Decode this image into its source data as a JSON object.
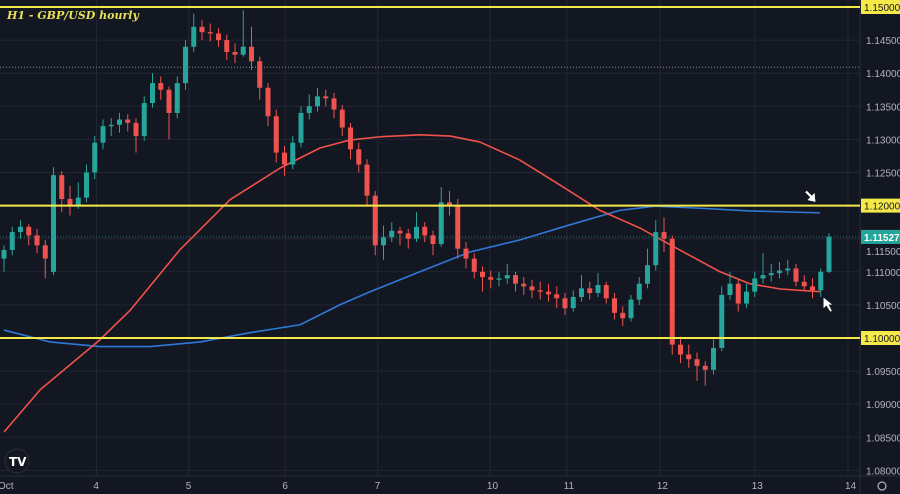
{
  "chart_data": {
    "type": "candlestick",
    "title": "H1 - GBP/USD hourly",
    "ylim": [
      1.0785,
      1.151
    ],
    "y_ticks": [
      "1.15000",
      "1.14500",
      "1.14000",
      "1.13500",
      "1.13000",
      "1.12500",
      "1.12000",
      "1.11500",
      "1.11000",
      "1.10500",
      "1.10000",
      "1.09500",
      "1.09000",
      "1.08500",
      "1.08000"
    ],
    "x_ticks": [
      {
        "label": "Oct",
        "bar": 0
      },
      {
        "label": "4",
        "bar": 11.2
      },
      {
        "label": "5",
        "bar": 22.4
      },
      {
        "label": "6",
        "bar": 34.1
      },
      {
        "label": "7",
        "bar": 45.3
      },
      {
        "label": "10",
        "bar": 58.9
      },
      {
        "label": "11",
        "bar": 68.2
      },
      {
        "label": "12",
        "bar": 79.5
      },
      {
        "label": "13",
        "bar": 91
      },
      {
        "label": "14",
        "bar": 102.3
      }
    ],
    "grid": true,
    "colors": {
      "up": "#26a69a",
      "down": "#ef5350",
      "background": "#131722",
      "grid": "#232734",
      "level": "#f5e94a",
      "ma_fast": "#f0524a",
      "ma_slow": "#2f78d8",
      "axis_text": "#b2b5be"
    },
    "candles": [
      [
        1.112,
        1.114,
        1.11,
        1.1133
      ],
      [
        1.1133,
        1.1168,
        1.1125,
        1.116
      ],
      [
        1.116,
        1.1178,
        1.115,
        1.1168
      ],
      [
        1.1168,
        1.1172,
        1.114,
        1.1155
      ],
      [
        1.1155,
        1.1165,
        1.1128,
        1.114
      ],
      [
        1.114,
        1.1148,
        1.109,
        1.112
      ],
      [
        1.11,
        1.1258,
        1.1095,
        1.1246
      ],
      [
        1.1246,
        1.1252,
        1.119,
        1.121
      ],
      [
        1.121,
        1.123,
        1.1185,
        1.12
      ],
      [
        1.12,
        1.1235,
        1.1195,
        1.1212
      ],
      [
        1.1212,
        1.1262,
        1.1205,
        1.125
      ],
      [
        1.125,
        1.1305,
        1.124,
        1.1295
      ],
      [
        1.1295,
        1.133,
        1.1285,
        1.132
      ],
      [
        1.132,
        1.1332,
        1.1305,
        1.1322
      ],
      [
        1.1322,
        1.134,
        1.131,
        1.133
      ],
      [
        1.133,
        1.1338,
        1.1312,
        1.1325
      ],
      [
        1.1325,
        1.1332,
        1.128,
        1.1305
      ],
      [
        1.1305,
        1.1365,
        1.1298,
        1.1355
      ],
      [
        1.1355,
        1.14,
        1.1348,
        1.1385
      ],
      [
        1.1385,
        1.1395,
        1.136,
        1.1375
      ],
      [
        1.1375,
        1.138,
        1.13,
        1.134
      ],
      [
        1.134,
        1.1395,
        1.1332,
        1.1385
      ],
      [
        1.1385,
        1.145,
        1.1375,
        1.144
      ],
      [
        1.144,
        1.149,
        1.1432,
        1.147
      ],
      [
        1.147,
        1.148,
        1.145,
        1.1462
      ],
      [
        1.1462,
        1.1475,
        1.1448,
        1.146
      ],
      [
        1.146,
        1.1468,
        1.144,
        1.145
      ],
      [
        1.145,
        1.1458,
        1.142,
        1.1432
      ],
      [
        1.1432,
        1.1445,
        1.1415,
        1.1428
      ],
      [
        1.1428,
        1.1495,
        1.1425,
        1.144
      ],
      [
        1.144,
        1.147,
        1.1405,
        1.1418
      ],
      [
        1.1418,
        1.1425,
        1.136,
        1.1378
      ],
      [
        1.1378,
        1.1385,
        1.132,
        1.1335
      ],
      [
        1.1335,
        1.1345,
        1.1265,
        1.128
      ],
      [
        1.128,
        1.129,
        1.1245,
        1.1262
      ],
      [
        1.1262,
        1.1305,
        1.1255,
        1.1295
      ],
      [
        1.1295,
        1.135,
        1.1288,
        1.134
      ],
      [
        1.134,
        1.1368,
        1.133,
        1.135
      ],
      [
        1.135,
        1.1378,
        1.1342,
        1.1365
      ],
      [
        1.1365,
        1.1375,
        1.135,
        1.1362
      ],
      [
        1.1362,
        1.137,
        1.1332,
        1.1345
      ],
      [
        1.1345,
        1.1352,
        1.1305,
        1.1318
      ],
      [
        1.1318,
        1.1325,
        1.127,
        1.1285
      ],
      [
        1.1285,
        1.1295,
        1.125,
        1.1262
      ],
      [
        1.1262,
        1.127,
        1.12,
        1.1215
      ],
      [
        1.1215,
        1.1222,
        1.1125,
        1.114
      ],
      [
        1.114,
        1.117,
        1.1118,
        1.1152
      ],
      [
        1.1152,
        1.1175,
        1.1145,
        1.1162
      ],
      [
        1.1162,
        1.1168,
        1.114,
        1.1158
      ],
      [
        1.1158,
        1.1165,
        1.1135,
        1.115
      ],
      [
        1.115,
        1.119,
        1.1145,
        1.1168
      ],
      [
        1.1168,
        1.1175,
        1.1145,
        1.1155
      ],
      [
        1.1155,
        1.1162,
        1.1125,
        1.1142
      ],
      [
        1.1142,
        1.1228,
        1.1138,
        1.1205
      ],
      [
        1.1205,
        1.1222,
        1.1185,
        1.12
      ],
      [
        1.12,
        1.121,
        1.112,
        1.1135
      ],
      [
        1.1135,
        1.1145,
        1.1105,
        1.112
      ],
      [
        1.112,
        1.1128,
        1.109,
        1.11
      ],
      [
        1.11,
        1.1108,
        1.107,
        1.1092
      ],
      [
        1.1092,
        1.1102,
        1.1075,
        1.1088
      ],
      [
        1.1088,
        1.11,
        1.1078,
        1.109
      ],
      [
        1.109,
        1.1112,
        1.1082,
        1.1095
      ],
      [
        1.1095,
        1.11,
        1.107,
        1.1082
      ],
      [
        1.1082,
        1.1092,
        1.1065,
        1.1078
      ],
      [
        1.1078,
        1.1088,
        1.106,
        1.1072
      ],
      [
        1.1072,
        1.1085,
        1.1058,
        1.107
      ],
      [
        1.107,
        1.1082,
        1.1055,
        1.1066
      ],
      [
        1.1066,
        1.1078,
        1.1045,
        1.106
      ],
      [
        1.106,
        1.1068,
        1.1035,
        1.1045
      ],
      [
        1.1045,
        1.1072,
        1.104,
        1.1062
      ],
      [
        1.1062,
        1.1095,
        1.1055,
        1.1075
      ],
      [
        1.1075,
        1.1085,
        1.1058,
        1.1068
      ],
      [
        1.1068,
        1.1098,
        1.1062,
        1.108
      ],
      [
        1.108,
        1.1085,
        1.1052,
        1.106
      ],
      [
        1.106,
        1.1068,
        1.1028,
        1.1038
      ],
      [
        1.1038,
        1.1048,
        1.1018,
        1.103
      ],
      [
        1.103,
        1.1065,
        1.1025,
        1.1058
      ],
      [
        1.1058,
        1.1092,
        1.105,
        1.1082
      ],
      [
        1.1082,
        1.1135,
        1.1075,
        1.111
      ],
      [
        1.111,
        1.1178,
        1.1102,
        1.116
      ],
      [
        1.116,
        1.1182,
        1.113,
        1.115
      ],
      [
        1.115,
        1.1155,
        1.0975,
        1.099
      ],
      [
        1.099,
        1.1002,
        1.0962,
        1.0975
      ],
      [
        1.0975,
        1.099,
        1.0955,
        1.0968
      ],
      [
        1.0968,
        1.0978,
        1.0935,
        1.0958
      ],
      [
        1.0958,
        1.0965,
        1.0928,
        1.0952
      ],
      [
        1.0952,
        1.0998,
        1.0945,
        1.0985
      ],
      [
        1.0985,
        1.1078,
        1.098,
        1.1065
      ],
      [
        1.1065,
        1.11,
        1.1058,
        1.1082
      ],
      [
        1.1082,
        1.109,
        1.104,
        1.1052
      ],
      [
        1.1052,
        1.1082,
        1.1045,
        1.107
      ],
      [
        1.107,
        1.11,
        1.1062,
        1.109
      ],
      [
        1.109,
        1.1128,
        1.1082,
        1.1095
      ],
      [
        1.1095,
        1.1112,
        1.1085,
        1.1098
      ],
      [
        1.1098,
        1.1115,
        1.109,
        1.1102
      ],
      [
        1.1102,
        1.1118,
        1.1095,
        1.1105
      ],
      [
        1.1105,
        1.1112,
        1.1078,
        1.1085
      ],
      [
        1.1085,
        1.1095,
        1.107,
        1.1078
      ],
      [
        1.1078,
        1.109,
        1.106,
        1.1072
      ],
      [
        1.1072,
        1.1105,
        1.1062,
        1.11
      ],
      [
        1.11,
        1.1158,
        1.1098,
        1.1153
      ]
    ],
    "ma_fast": [
      [
        0,
        1.0858
      ],
      [
        4.4,
        1.0922
      ],
      [
        11.6,
        1.0997
      ],
      [
        15.3,
        1.1042
      ],
      [
        21.3,
        1.1133
      ],
      [
        27.4,
        1.1209
      ],
      [
        33.5,
        1.1257
      ],
      [
        38.3,
        1.1287
      ],
      [
        41.9,
        1.1299
      ],
      [
        45.6,
        1.1304
      ],
      [
        50.4,
        1.1307
      ],
      [
        54.1,
        1.1305
      ],
      [
        57.7,
        1.1296
      ],
      [
        62.5,
        1.1269
      ],
      [
        67.4,
        1.1231
      ],
      [
        72.2,
        1.1193
      ],
      [
        77.1,
        1.1166
      ],
      [
        81.9,
        1.1133
      ],
      [
        86.8,
        1.11
      ],
      [
        90.4,
        1.1082
      ],
      [
        94.1,
        1.1074
      ],
      [
        98.9,
        1.107
      ]
    ],
    "ma_slow": [
      [
        0,
        1.1012
      ],
      [
        5.6,
        1.0994
      ],
      [
        11.6,
        1.0987
      ],
      [
        17.7,
        1.0987
      ],
      [
        23.8,
        1.0994
      ],
      [
        29.8,
        1.1008
      ],
      [
        35.9,
        1.102
      ],
      [
        40.7,
        1.105
      ],
      [
        44.4,
        1.107
      ],
      [
        50.4,
        1.11
      ],
      [
        56.5,
        1.113
      ],
      [
        62.5,
        1.1148
      ],
      [
        68.6,
        1.1171
      ],
      [
        74.7,
        1.1193
      ],
      [
        78.9,
        1.1199
      ],
      [
        84.4,
        1.1196
      ],
      [
        90.4,
        1.1192
      ],
      [
        98.9,
        1.1189
      ]
    ],
    "levels": [
      {
        "price": 1.15,
        "label": "1.15000",
        "style": "solid"
      },
      {
        "price": 1.12,
        "label": "1.12000",
        "style": "solid"
      },
      {
        "price": 1.1,
        "label": "1.10000",
        "style": "solid"
      }
    ],
    "reference_line": 1.1409,
    "last_price": {
      "price": 1.11527,
      "label": "1.11527"
    },
    "annotations": [
      {
        "type": "cursor-arrow",
        "bar": 98.4,
        "price": 1.1205,
        "direction": "down-right"
      },
      {
        "type": "cursor-arrow",
        "bar": 99.3,
        "price": 1.1062,
        "direction": "up-left"
      }
    ]
  }
}
